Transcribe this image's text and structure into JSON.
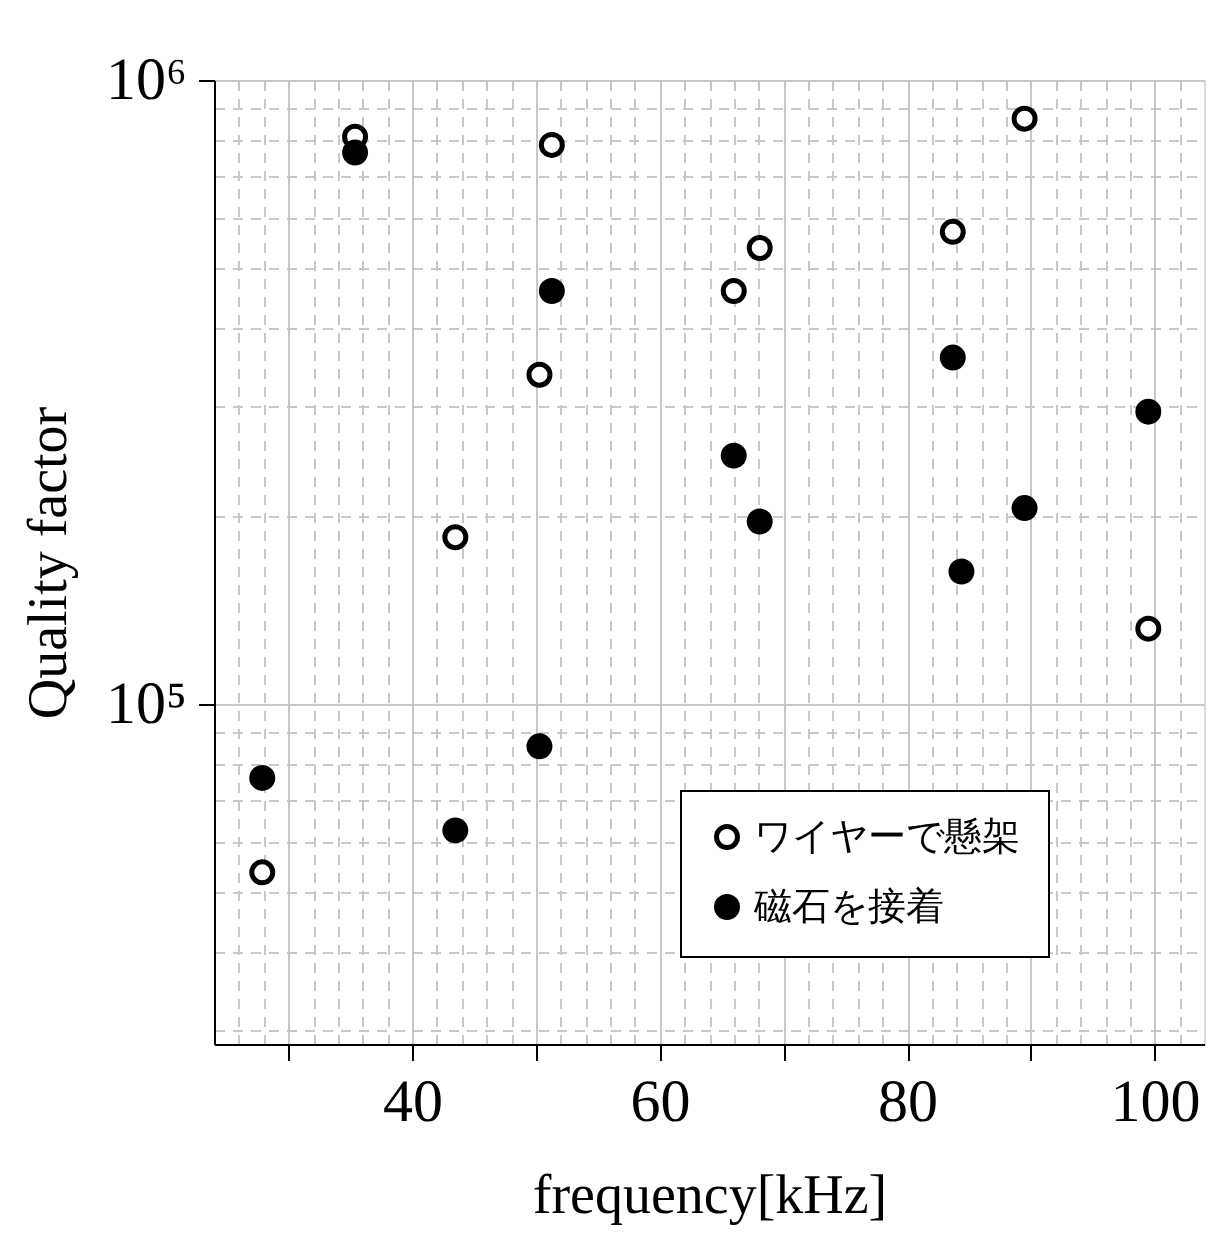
{
  "chart_data": {
    "type": "scatter",
    "xlabel": "frequency[kHz]",
    "ylabel": "Quality factor",
    "xlim": [
      24,
      104
    ],
    "xticks": [
      {
        "value": 30,
        "label": null
      },
      40,
      {
        "value": 50,
        "label": null
      },
      60,
      {
        "value": 70,
        "label": null
      },
      80,
      {
        "value": 90,
        "label": null
      },
      100
    ],
    "ylim": [
      28500,
      1000000
    ],
    "yticks": [
      {
        "value": 100000,
        "label": "10⁵"
      },
      {
        "value": 1000000,
        "label": "10⁶"
      }
    ],
    "log": "y",
    "grid": true,
    "legend": "bottom right",
    "marker": "circle",
    "series": [
      {
        "name": "ワイヤーで懸架",
        "color": "#ffffff",
        "x": [
          35.4,
          51.3,
          89.5,
          83.7,
          68.1,
          66.0,
          50.3,
          43.5,
          99.5,
          27.9
        ],
        "values": [
          811000,
          787000,
          867000,
          571000,
          538000,
          459000,
          337000,
          185000,
          132000,
          53700
        ]
      },
      {
        "name": "磁石を接着",
        "color": "#000000",
        "x": [
          35.4,
          51.3,
          83.7,
          99.5,
          66.0,
          89.5,
          68.1,
          84.4,
          27.9,
          50.3,
          43.5
        ],
        "values": [
          765000,
          459000,
          359000,
          294000,
          250000,
          206000,
          196000,
          163000,
          76100,
          85500,
          62700
        ]
      }
    ]
  }
}
